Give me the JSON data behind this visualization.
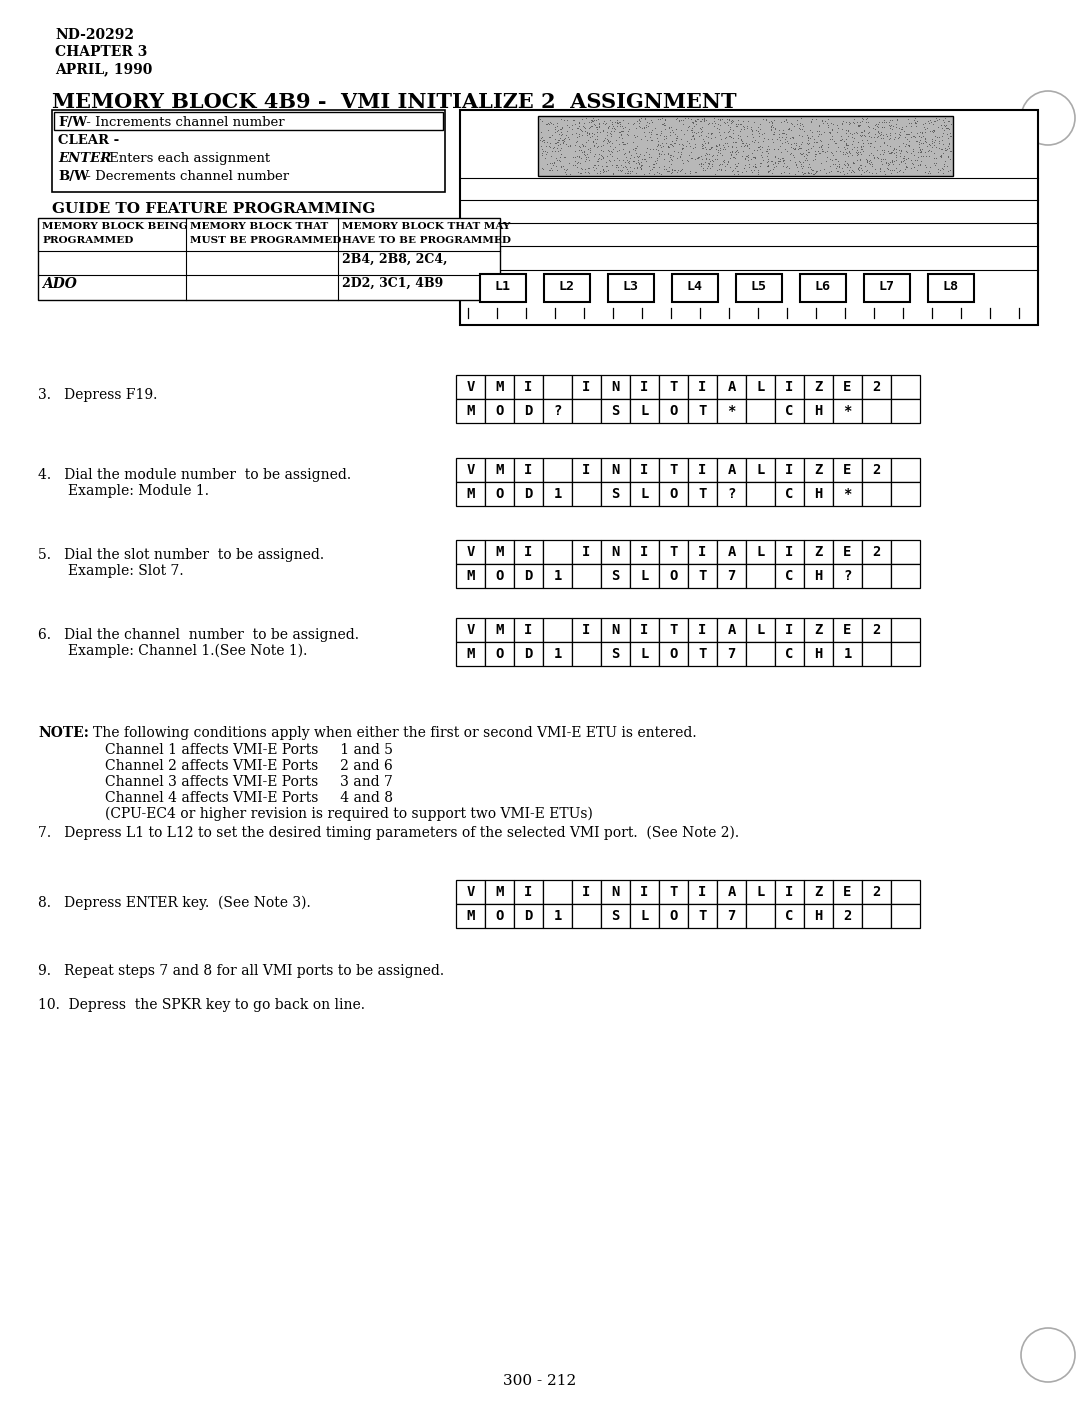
{
  "header": [
    "ND-20292",
    "CHAPTER 3",
    "APRIL, 1990"
  ],
  "title": "MEMORY BLOCK 4B9 -  VMI INITIALIZE 2  ASSIGNMENT",
  "key_items": [
    [
      "F/W",
      " - Increments channel number"
    ],
    [
      "CLEAR -",
      ""
    ],
    [
      "ENTER",
      " - Enters each assignment"
    ],
    [
      "B/W",
      " - Decrements channel number"
    ]
  ],
  "guide_title": "GUIDE TO FEATURE PROGRAMMING",
  "guide_headers": [
    "MEMORY BLOCK BEING\nPROGRAMMED",
    "MEMORY BLOCK THAT\nMUST BE PROGRAMMED",
    "MEMORY BLOCK THAT MAY\nHAVE TO BE PROGRAMMED"
  ],
  "guide_row1_col3": "2B4, 2B8, 2C4,",
  "guide_row2_col1": "ADO",
  "guide_row2_col3": "2D2, 3C1, 4B9",
  "L_labels": [
    "L1",
    "L2",
    "L3",
    "L4",
    "L5",
    "L6",
    "L7",
    "L8"
  ],
  "steps": [
    {
      "num": 3,
      "text": "Depress F19.",
      "text2": "",
      "row1": [
        "V",
        "M",
        "I",
        " ",
        "I",
        "N",
        "I",
        "T",
        "I",
        "A",
        "L",
        "I",
        "Z",
        "E",
        "2",
        " "
      ],
      "row2": [
        "M",
        "O",
        "D",
        "?",
        " ",
        "S",
        "L",
        "O",
        "T",
        "*",
        " ",
        "C",
        "H",
        "*",
        " ",
        " "
      ]
    },
    {
      "num": 4,
      "text": "Dial the module number  to be assigned.",
      "text2": "Example: Module 1.",
      "row1": [
        "V",
        "M",
        "I",
        " ",
        "I",
        "N",
        "I",
        "T",
        "I",
        "A",
        "L",
        "I",
        "Z",
        "E",
        "2",
        " "
      ],
      "row2": [
        "M",
        "O",
        "D",
        "1",
        " ",
        "S",
        "L",
        "O",
        "T",
        "?",
        " ",
        "C",
        "H",
        "*",
        " ",
        " "
      ]
    },
    {
      "num": 5,
      "text": "Dial the slot number  to be assigned.",
      "text2": "Example: Slot 7.",
      "row1": [
        "V",
        "M",
        "I",
        " ",
        "I",
        "N",
        "I",
        "T",
        "I",
        "A",
        "L",
        "I",
        "Z",
        "E",
        "2",
        " "
      ],
      "row2": [
        "M",
        "O",
        "D",
        "1",
        " ",
        "S",
        "L",
        "O",
        "T",
        "7",
        " ",
        "C",
        "H",
        "?",
        " ",
        " "
      ]
    },
    {
      "num": 6,
      "text": "Dial the channel  number  to be assigned.",
      "text2": "Example: Channel 1.(See Note 1).",
      "row1": [
        "V",
        "M",
        "I",
        " ",
        "I",
        "N",
        "I",
        "T",
        "I",
        "A",
        "L",
        "I",
        "Z",
        "E",
        "2",
        " "
      ],
      "row2": [
        "M",
        "O",
        "D",
        "1",
        " ",
        "S",
        "L",
        "O",
        "T",
        "7",
        " ",
        "C",
        "H",
        "1",
        " ",
        " "
      ]
    }
  ],
  "note_header": "NOTE:",
  "note_main": "The following conditions apply when either the first or second VMI-E ETU is entered.",
  "note_items": [
    "Channel 1 affects VMI-E Ports     1 and 5",
    "Channel 2 affects VMI-E Ports     2 and 6",
    "Channel 3 affects VMI-E Ports     3 and 7",
    "Channel 4 affects VMI-E Ports     4 and 8",
    "(CPU-EC4 or higher revision is required to support two VMI-E ETUs)"
  ],
  "step7": "7.   Depress L1 to L12 to set the desired timing parameters of the selected VMI port.  (See Note 2).",
  "step8_text": "Depress ENTER key.  (See Note 3).",
  "step8_row1": [
    "V",
    "M",
    "I",
    " ",
    "I",
    "N",
    "I",
    "T",
    "I",
    "A",
    "L",
    "I",
    "Z",
    "E",
    "2",
    " "
  ],
  "step8_row2": [
    "M",
    "O",
    "D",
    "1",
    " ",
    "S",
    "L",
    "O",
    "T",
    "7",
    " ",
    "C",
    "H",
    "2",
    " ",
    " "
  ],
  "step9": "Repeat steps 7 and 8 for all VMI ports to be assigned.",
  "step10": "Depress  the SPKR key to go back on line.",
  "footer": "300 - 212"
}
